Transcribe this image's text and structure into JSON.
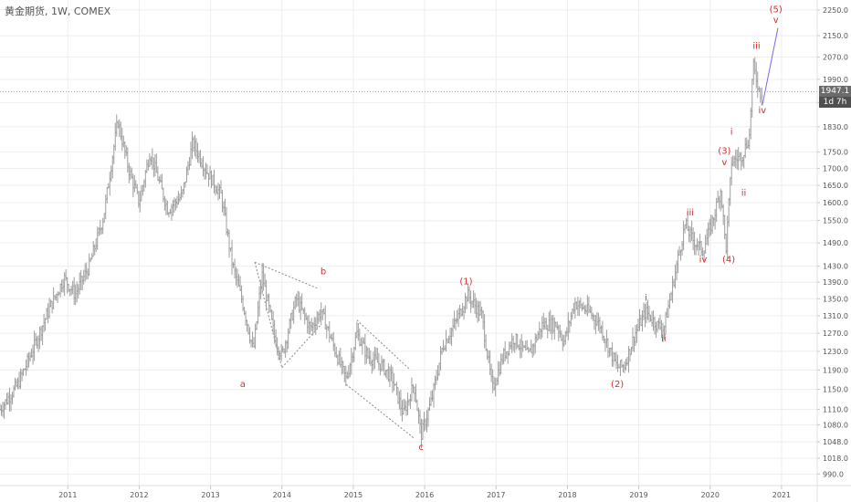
{
  "title": "黄金期货, 1W, COMEX",
  "last_price_label": "1947.1",
  "countdown_label": "1d 7h",
  "colors": {
    "bar": "#9e9e9e",
    "wave_label": "#d32f2f",
    "guide": "#8a8a8a",
    "projection": "#7b68ee",
    "price_line": "#9aa3b5",
    "grid": "#eeeeee"
  },
  "chart_data": {
    "type": "ohlc-bar",
    "x_axis": {
      "ticks": [
        "2011",
        "2012",
        "2013",
        "2014",
        "2015",
        "2016",
        "2017",
        "2018",
        "2019",
        "2020",
        "2021"
      ],
      "range": [
        2010.05,
        2021.5
      ]
    },
    "y_axis": {
      "scale": "log",
      "position": "right",
      "ticks": [
        "990.0",
        "1018.0",
        "1048.0",
        "1080.0",
        "1110.0",
        "1150.0",
        "1190.0",
        "1230.0",
        "1270.0",
        "1310.0",
        "1350.0",
        "1390.0",
        "1430.0",
        "1490.0",
        "1550.0",
        "1600.0",
        "1650.0",
        "1700.0",
        "1750.0",
        "1830.0",
        "1910.0",
        "1990.0",
        "2070.0",
        "2150.0",
        "2250.0"
      ],
      "range": [
        970,
        2290
      ]
    },
    "price_anchors": [
      [
        2010.05,
        1110
      ],
      [
        2010.3,
        1160
      ],
      [
        2010.5,
        1230
      ],
      [
        2010.75,
        1330
      ],
      [
        2010.95,
        1400
      ],
      [
        2011.1,
        1360
      ],
      [
        2011.3,
        1430
      ],
      [
        2011.5,
        1560
      ],
      [
        2011.7,
        1850
      ],
      [
        2011.85,
        1700
      ],
      [
        2012.0,
        1600
      ],
      [
        2012.15,
        1750
      ],
      [
        2012.4,
        1580
      ],
      [
        2012.6,
        1620
      ],
      [
        2012.75,
        1780
      ],
      [
        2012.95,
        1690
      ],
      [
        2013.15,
        1620
      ],
      [
        2013.3,
        1440
      ],
      [
        2013.45,
        1340
      ],
      [
        2013.6,
        1230
      ],
      [
        2013.72,
        1410
      ],
      [
        2013.9,
        1260
      ],
      [
        2014.0,
        1220
      ],
      [
        2014.2,
        1350
      ],
      [
        2014.4,
        1280
      ],
      [
        2014.55,
        1320
      ],
      [
        2014.75,
        1230
      ],
      [
        2014.9,
        1170
      ],
      [
        2015.05,
        1270
      ],
      [
        2015.2,
        1220
      ],
      [
        2015.4,
        1200
      ],
      [
        2015.55,
        1170
      ],
      [
        2015.7,
        1100
      ],
      [
        2015.85,
        1160
      ],
      [
        2015.95,
        1060
      ],
      [
        2016.1,
        1130
      ],
      [
        2016.25,
        1240
      ],
      [
        2016.45,
        1300
      ],
      [
        2016.6,
        1360
      ],
      [
        2016.8,
        1310
      ],
      [
        2016.95,
        1150
      ],
      [
        2017.1,
        1220
      ],
      [
        2017.25,
        1260
      ],
      [
        2017.45,
        1220
      ],
      [
        2017.65,
        1290
      ],
      [
        2017.85,
        1290
      ],
      [
        2017.95,
        1250
      ],
      [
        2018.1,
        1340
      ],
      [
        2018.3,
        1320
      ],
      [
        2018.45,
        1290
      ],
      [
        2018.6,
        1230
      ],
      [
        2018.7,
        1195
      ],
      [
        2018.8,
        1200
      ],
      [
        2018.95,
        1270
      ],
      [
        2019.1,
        1320
      ],
      [
        2019.25,
        1290
      ],
      [
        2019.35,
        1280
      ],
      [
        2019.45,
        1360
      ],
      [
        2019.55,
        1450
      ],
      [
        2019.65,
        1540
      ],
      [
        2019.75,
        1500
      ],
      [
        2019.9,
        1470
      ],
      [
        2020.05,
        1560
      ],
      [
        2020.15,
        1640
      ],
      [
        2020.22,
        1470
      ],
      [
        2020.3,
        1720
      ],
      [
        2020.45,
        1740
      ],
      [
        2020.55,
        1800
      ],
      [
        2020.6,
        2040
      ],
      [
        2020.7,
        1940
      ],
      [
        2020.73,
        1947.1
      ]
    ],
    "last_price": 1947.1,
    "wave_labels": [
      {
        "text": "a",
        "x": 2013.45,
        "y": 1155
      },
      {
        "text": "b",
        "x": 2014.58,
        "y": 1410
      },
      {
        "text": "c",
        "x": 2015.95,
        "y": 1033
      },
      {
        "text": "(1)",
        "x": 2016.58,
        "y": 1385
      },
      {
        "text": "(2)",
        "x": 2018.7,
        "y": 1155
      },
      {
        "text": "i",
        "x": 2019.1,
        "y": 1345
      },
      {
        "text": "ii",
        "x": 2019.35,
        "y": 1252
      },
      {
        "text": "iii",
        "x": 2019.72,
        "y": 1565
      },
      {
        "text": "iv",
        "x": 2019.9,
        "y": 1440
      },
      {
        "text": "(3)",
        "x": 2020.2,
        "y": 1745
      },
      {
        "text": "v",
        "x": 2020.2,
        "y": 1710
      },
      {
        "text": "(4)",
        "x": 2020.26,
        "y": 1440
      },
      {
        "text": "i",
        "x": 2020.3,
        "y": 1805
      },
      {
        "text": "ii",
        "x": 2020.47,
        "y": 1620
      },
      {
        "text": "iii",
        "x": 2020.65,
        "y": 2100
      },
      {
        "text": "iv",
        "x": 2020.73,
        "y": 1875
      },
      {
        "text": "(5)",
        "x": 2020.92,
        "y": 2240
      },
      {
        "text": "v",
        "x": 2020.92,
        "y": 2200
      }
    ],
    "trend_lines": [
      {
        "from": [
          2013.62,
          1440
        ],
        "to": [
          2014.5,
          1375
        ]
      },
      {
        "from": [
          2013.62,
          1440
        ],
        "to": [
          2014.0,
          1195
        ]
      },
      {
        "from": [
          2014.0,
          1195
        ],
        "to": [
          2014.55,
          1290
        ]
      },
      {
        "from": [
          2015.05,
          1300
        ],
        "to": [
          2015.8,
          1190
        ]
      },
      {
        "from": [
          2014.9,
          1160
        ],
        "to": [
          2015.85,
          1055
        ]
      },
      {
        "from": [
          2020.73,
          1900
        ],
        "to": [
          2020.95,
          2180
        ]
      }
    ]
  }
}
